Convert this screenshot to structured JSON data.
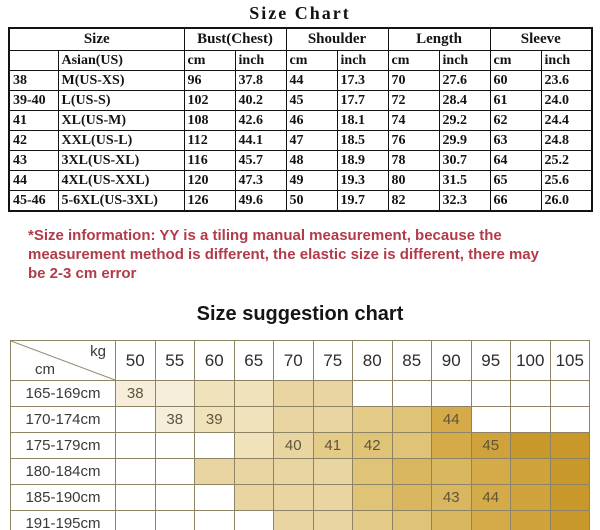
{
  "size_chart": {
    "title": "Size Chart",
    "groups": [
      {
        "label": "Size",
        "span": 2
      },
      {
        "label": "Bust(Chest)",
        "span": 2
      },
      {
        "label": "Shoulder",
        "span": 2
      },
      {
        "label": "Length",
        "span": 2
      },
      {
        "label": "Sleeve",
        "span": 2
      }
    ],
    "sub_headers": [
      "",
      "Asian(US)",
      "cm",
      "inch",
      "cm",
      "inch",
      "cm",
      "inch",
      "cm",
      "inch"
    ],
    "rows": [
      [
        "38",
        "M(US-XS)",
        "96",
        "37.8",
        "44",
        "17.3",
        "70",
        "27.6",
        "60",
        "23.6"
      ],
      [
        "39-40",
        "L(US-S)",
        "102",
        "40.2",
        "45",
        "17.7",
        "72",
        "28.4",
        "61",
        "24.0"
      ],
      [
        "41",
        "XL(US-M)",
        "108",
        "42.6",
        "46",
        "18.1",
        "74",
        "29.2",
        "62",
        "24.4"
      ],
      [
        "42",
        "XXL(US-L)",
        "112",
        "44.1",
        "47",
        "18.5",
        "76",
        "29.9",
        "63",
        "24.8"
      ],
      [
        "43",
        "3XL(US-XL)",
        "116",
        "45.7",
        "48",
        "18.9",
        "78",
        "30.7",
        "64",
        "25.2"
      ],
      [
        "44",
        "4XL(US-XXL)",
        "120",
        "47.3",
        "49",
        "19.3",
        "80",
        "31.5",
        "65",
        "25.6"
      ],
      [
        "45-46",
        "5-6XL(US-3XL)",
        "126",
        "49.6",
        "50",
        "19.7",
        "82",
        "32.3",
        "66",
        "26.0"
      ]
    ]
  },
  "note": "*Size information: YY is a tiling manual measurement, because the measurement method is different, the elastic size is different, there may be 2-3 cm error",
  "note_color": "#b23b49",
  "suggestion_chart": {
    "title": "Size suggestion chart",
    "corner": {
      "top_right": "kg",
      "bottom_left": "cm"
    },
    "weights": [
      "50",
      "55",
      "60",
      "65",
      "70",
      "75",
      "80",
      "85",
      "90",
      "95",
      "100",
      "105"
    ],
    "band_colors": {
      "38": "#f6eeda",
      "39": "#f0e2bb",
      "40": "#e9d5a1",
      "41": "#e4cb87",
      "42": "#dfc376",
      "43": "#d9b660",
      "44": "#d5ab49",
      "45": "#cfa23c",
      "45+": "#c8982a",
      "none": "#ffffff"
    },
    "rows": [
      {
        "height": "165-169cm",
        "shades": [
          "38",
          "38",
          "39",
          "39",
          "40",
          "40",
          "",
          "",
          "",
          "",
          "",
          ""
        ],
        "labels": [
          "38",
          "",
          "",
          "",
          "",
          "",
          "",
          "",
          "",
          "",
          "",
          ""
        ]
      },
      {
        "height": "170-174cm",
        "shades": [
          "",
          "38",
          "39",
          "39",
          "40",
          "40",
          "41",
          "42",
          "44",
          "",
          "",
          ""
        ],
        "labels": [
          "",
          "38",
          "39",
          "",
          "",
          "",
          "",
          "",
          "44",
          "",
          "",
          ""
        ]
      },
      {
        "height": "175-179cm",
        "shades": [
          "",
          "",
          "",
          "39",
          "40",
          "41",
          "42",
          "42",
          "44",
          "45",
          "45+",
          "45+"
        ],
        "labels": [
          "",
          "",
          "",
          "",
          "40",
          "41",
          "42",
          "",
          "",
          "45",
          "",
          ""
        ]
      },
      {
        "height": "180-184cm",
        "shades": [
          "",
          "",
          "40",
          "40",
          "40",
          "40",
          "42",
          "43",
          "43",
          "44",
          "45",
          "45+"
        ],
        "labels": [
          "",
          "",
          "",
          "",
          "",
          "",
          "",
          "",
          "",
          "",
          "",
          ""
        ]
      },
      {
        "height": "185-190cm",
        "shades": [
          "",
          "",
          "",
          "40",
          "40",
          "40",
          "42",
          "43",
          "43",
          "44",
          "45",
          "45+"
        ],
        "labels": [
          "",
          "",
          "",
          "",
          "",
          "",
          "",
          "",
          "43",
          "44",
          "",
          ""
        ]
      },
      {
        "height": "191-195cm",
        "shades": [
          "",
          "",
          "",
          "",
          "40",
          "40",
          "41",
          "42",
          "43",
          "44",
          "45",
          "45+"
        ],
        "labels": [
          "",
          "",
          "",
          "",
          "",
          "",
          "",
          "",
          "",
          "",
          "",
          ""
        ]
      }
    ]
  }
}
